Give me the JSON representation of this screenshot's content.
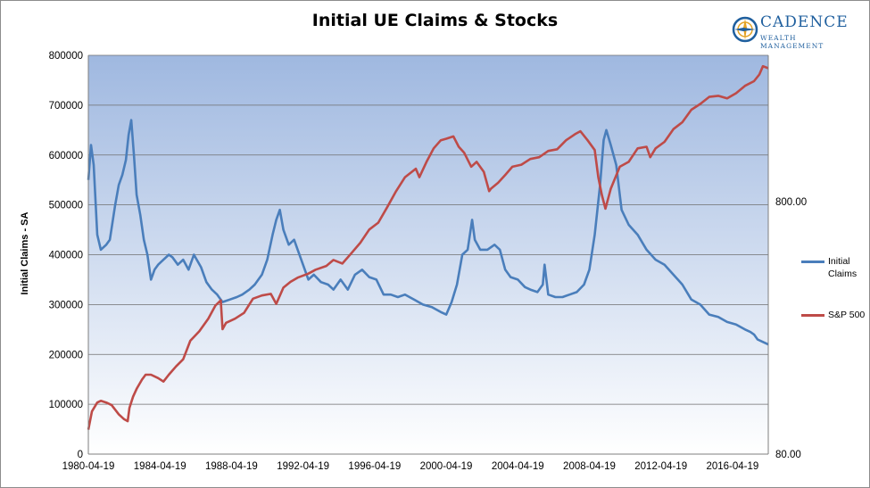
{
  "chart_data": {
    "type": "line",
    "title": "Initial UE Claims & Stocks",
    "ylabel": "Initial Claims - SA",
    "ylim": [
      0,
      800000
    ],
    "y_ticks": [
      "0",
      "100000",
      "200000",
      "300000",
      "400000",
      "500000",
      "600000",
      "700000",
      "800000"
    ],
    "y2_scale": "log",
    "y2_ticks": [
      "80.00",
      "800.00"
    ],
    "x_ticks": [
      "1980-04-19",
      "1984-04-19",
      "1988-04-19",
      "1992-04-19",
      "1996-04-19",
      "2000-04-19",
      "2004-04-19",
      "2008-04-19",
      "2012-04-19",
      "2016-04-19"
    ],
    "x_range": [
      1980.3,
      2018.3
    ],
    "legend_position": "right",
    "grid": true,
    "series": [
      {
        "name": "Initial Claims",
        "axis": "left",
        "color": "#4a7ebb",
        "x": [
          1980.3,
          1980.45,
          1980.6,
          1980.8,
          1981.0,
          1981.3,
          1981.5,
          1981.8,
          1982.0,
          1982.2,
          1982.4,
          1982.55,
          1982.7,
          1982.85,
          1983.0,
          1983.2,
          1983.4,
          1983.6,
          1983.8,
          1984.0,
          1984.2,
          1984.5,
          1984.8,
          1985.0,
          1985.3,
          1985.6,
          1985.9,
          1986.2,
          1986.6,
          1986.9,
          1987.2,
          1987.5,
          1987.8,
          1988.2,
          1988.6,
          1988.9,
          1989.3,
          1989.6,
          1990.0,
          1990.3,
          1990.6,
          1990.8,
          1991.0,
          1991.2,
          1991.5,
          1991.8,
          1992.0,
          1992.3,
          1992.6,
          1992.9,
          1993.3,
          1993.7,
          1994.0,
          1994.4,
          1994.8,
          1995.2,
          1995.6,
          1996.0,
          1996.4,
          1996.8,
          1997.2,
          1997.6,
          1998.0,
          1998.5,
          1999.0,
          1999.5,
          2000.0,
          2000.3,
          2000.6,
          2000.9,
          2001.2,
          2001.5,
          2001.75,
          2001.9,
          2002.2,
          2002.6,
          2003.0,
          2003.3,
          2003.6,
          2003.9,
          2004.3,
          2004.7,
          2005.0,
          2005.4,
          2005.7,
          2005.8,
          2006.0,
          2006.4,
          2006.8,
          2007.2,
          2007.6,
          2008.0,
          2008.3,
          2008.6,
          2008.9,
          2009.1,
          2009.25,
          2009.5,
          2009.8,
          2010.1,
          2010.5,
          2011.0,
          2011.5,
          2012.0,
          2012.5,
          2013.0,
          2013.5,
          2014.0,
          2014.5,
          2015.0,
          2015.5,
          2016.0,
          2016.5,
          2017.0,
          2017.3,
          2017.5,
          2017.7,
          2018.0,
          2018.3
        ],
        "values": [
          550000,
          620000,
          580000,
          440000,
          410000,
          420000,
          430000,
          500000,
          540000,
          560000,
          590000,
          640000,
          670000,
          600000,
          520000,
          480000,
          430000,
          400000,
          350000,
          370000,
          380000,
          390000,
          400000,
          395000,
          380000,
          390000,
          370000,
          400000,
          375000,
          345000,
          330000,
          320000,
          305000,
          310000,
          315000,
          320000,
          330000,
          340000,
          360000,
          390000,
          440000,
          470000,
          490000,
          450000,
          420000,
          430000,
          410000,
          380000,
          350000,
          360000,
          345000,
          340000,
          330000,
          350000,
          330000,
          360000,
          370000,
          355000,
          350000,
          320000,
          320000,
          315000,
          320000,
          310000,
          300000,
          295000,
          285000,
          280000,
          305000,
          340000,
          400000,
          410000,
          470000,
          430000,
          410000,
          410000,
          420000,
          410000,
          370000,
          355000,
          350000,
          335000,
          330000,
          325000,
          340000,
          380000,
          320000,
          315000,
          315000,
          320000,
          325000,
          340000,
          370000,
          440000,
          540000,
          630000,
          650000,
          620000,
          580000,
          490000,
          460000,
          440000,
          410000,
          390000,
          380000,
          360000,
          340000,
          310000,
          300000,
          280000,
          275000,
          265000,
          260000,
          250000,
          245000,
          240000,
          230000,
          225000,
          220000
        ]
      },
      {
        "name": "S&P 500",
        "axis": "right",
        "color": "#be4b48",
        "x": [
          1980.3,
          1980.5,
          1980.8,
          1981.0,
          1981.3,
          1981.6,
          1982.0,
          1982.3,
          1982.5,
          1982.6,
          1982.8,
          1983.0,
          1983.3,
          1983.5,
          1983.8,
          1984.2,
          1984.5,
          1984.8,
          1985.2,
          1985.6,
          1986.0,
          1986.5,
          1987.0,
          1987.4,
          1987.7,
          1987.8,
          1988.0,
          1988.5,
          1989.0,
          1989.5,
          1990.0,
          1990.5,
          1990.8,
          1991.2,
          1991.6,
          1992.0,
          1992.6,
          1993.0,
          1993.6,
          1994.0,
          1994.5,
          1995.0,
          1995.5,
          1996.0,
          1996.5,
          1997.0,
          1997.5,
          1998.0,
          1998.6,
          1998.8,
          1999.2,
          1999.6,
          2000.0,
          2000.3,
          2000.7,
          2001.0,
          2001.3,
          2001.7,
          2002.0,
          2002.4,
          2002.7,
          2002.8,
          2003.2,
          2003.6,
          2004.0,
          2004.5,
          2005.0,
          2005.5,
          2006.0,
          2006.5,
          2007.0,
          2007.5,
          2007.8,
          2008.2,
          2008.6,
          2008.8,
          2009.0,
          2009.2,
          2009.5,
          2010.0,
          2010.5,
          2011.0,
          2011.5,
          2011.7,
          2012.0,
          2012.5,
          2013.0,
          2013.5,
          2014.0,
          2014.5,
          2015.0,
          2015.5,
          2016.0,
          2016.5,
          2017.0,
          2017.5,
          2017.8,
          2018.0,
          2018.3
        ],
        "values": [
          100,
          118,
          128,
          130,
          128,
          125,
          115,
          110,
          108,
          122,
          135,
          145,
          158,
          165,
          165,
          160,
          155,
          165,
          178,
          190,
          225,
          245,
          275,
          310,
          325,
          250,
          265,
          275,
          290,
          330,
          340,
          345,
          315,
          365,
          385,
          400,
          415,
          430,
          445,
          470,
          455,
          500,
          550,
          620,
          660,
          760,
          880,
          1000,
          1080,
          1000,
          1150,
          1300,
          1400,
          1420,
          1450,
          1320,
          1250,
          1100,
          1150,
          1050,
          880,
          900,
          950,
          1020,
          1100,
          1120,
          1180,
          1200,
          1270,
          1290,
          1400,
          1480,
          1520,
          1400,
          1280,
          1000,
          850,
          750,
          900,
          1100,
          1150,
          1300,
          1320,
          1200,
          1300,
          1380,
          1550,
          1650,
          1850,
          1950,
          2080,
          2100,
          2050,
          2150,
          2300,
          2400,
          2550,
          2750,
          2700
        ]
      }
    ]
  },
  "legend": {
    "items": [
      {
        "label": "Initial\nClaims",
        "color": "#4a7ebb"
      },
      {
        "label": "S&P 500",
        "color": "#be4b48"
      }
    ]
  },
  "logo": {
    "name": "CADENCE",
    "subtitle": "WEALTH MANAGEMENT"
  },
  "colors": {
    "plot_bg_top": "#9fb8e0",
    "plot_bg_bottom": "#ffffff",
    "gridline": "#6f6f6f"
  }
}
